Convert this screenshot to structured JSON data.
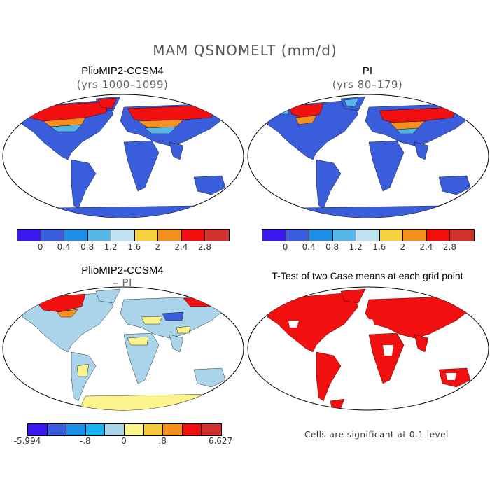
{
  "figure": {
    "title": "MAM QSNOMELT (mm/d)"
  },
  "panels": {
    "top_left": {
      "title": "PlioMIP2-CCSM4",
      "subtitle": "(yrs 1000–1099)"
    },
    "top_right": {
      "title": "PI",
      "subtitle": "(yrs 80–179)"
    },
    "bottom_left": {
      "title": "PlioMIP2-CCSM4",
      "subtitle": "– PI"
    },
    "bottom_right": {
      "title": "T-Test of two Case means at each grid point",
      "note": "Cells are significant at 0.1 level"
    }
  },
  "colorbars": {
    "abs": {
      "colors": [
        "#3b18f0",
        "#3a5ddc",
        "#1b8fe6",
        "#54b7e8",
        "#bfe3f2",
        "#f7d23b",
        "#f5901e",
        "#f10f0f",
        "#d3312f"
      ],
      "labels": [
        "0",
        "0.4",
        "0.8",
        "1.2",
        "1.6",
        "2",
        "2.4",
        "2.8"
      ]
    },
    "diff": {
      "colors": [
        "#3b18f0",
        "#3a5ddc",
        "#1b8fe6",
        "#19b2f0",
        "#a9d4ea",
        "#fbf38b",
        "#f7c93d",
        "#f5901e",
        "#f10f0f",
        "#d3312f"
      ],
      "labels": [
        "-5.994",
        "-.8",
        "0",
        ".8",
        "6.627"
      ]
    }
  },
  "map_colors": {
    "land_base": "#3a5ddc",
    "snow_high": "#f10f0f",
    "snow_mid": "#f5901e",
    "snow_low": "#54b7e8",
    "diff_base": "#a9d4ea",
    "diff_pos": "#fbf38b",
    "sig": "#f10f0f"
  }
}
